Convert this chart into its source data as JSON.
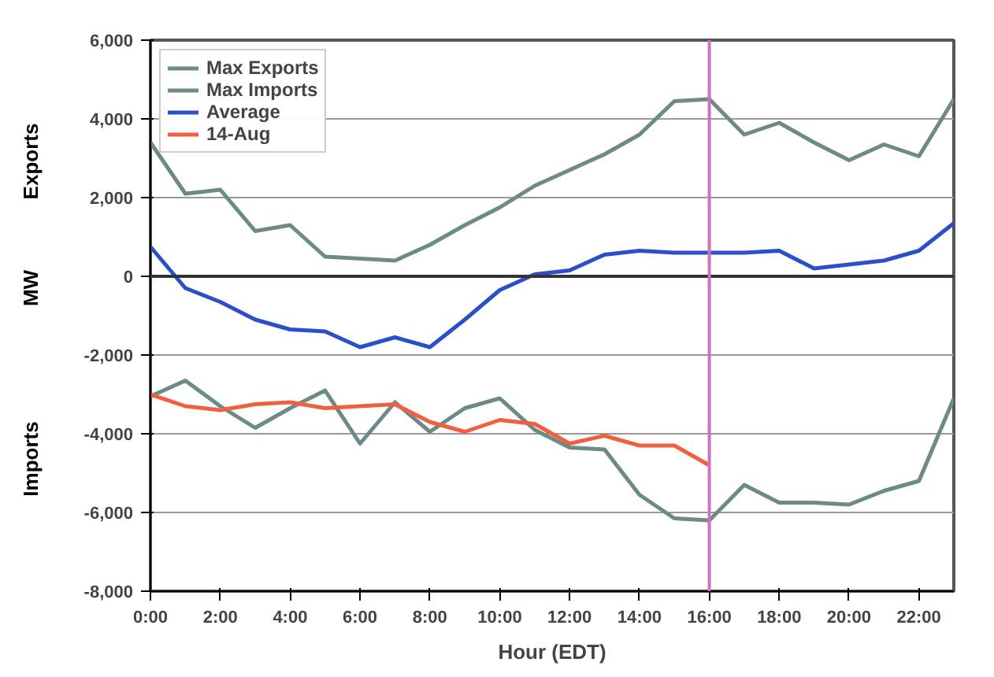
{
  "chart_data": {
    "type": "line",
    "xlabel": "Hour (EDT)",
    "ylabel": "MW",
    "annotations": [
      "Exports",
      "Imports"
    ],
    "x": [
      0,
      1,
      2,
      3,
      4,
      5,
      6,
      7,
      8,
      9,
      10,
      11,
      12,
      13,
      14,
      15,
      16,
      17,
      18,
      19,
      20,
      21,
      22,
      23
    ],
    "series": [
      {
        "name": "Max Exports",
        "color": "#6b8a88",
        "values": [
          3400,
          2100,
          2200,
          1150,
          1300,
          500,
          450,
          400,
          800,
          1300,
          1750,
          2300,
          2700,
          3100,
          3600,
          4450,
          4500,
          3600,
          3900,
          3400,
          2950,
          3350,
          3050,
          4500
        ]
      },
      {
        "name": "Max Imports",
        "color": "#6b8a88",
        "values": [
          -3050,
          -2650,
          -3300,
          -3850,
          -3350,
          -2900,
          -4250,
          -3200,
          -3950,
          -3350,
          -3100,
          -3900,
          -4350,
          -4400,
          -5550,
          -6150,
          -6200,
          -5300,
          -5750,
          -5750,
          -5800,
          -5450,
          -5200,
          -3100
        ]
      },
      {
        "name": "Average",
        "color": "#2a4fc8",
        "values": [
          750,
          -300,
          -650,
          -1100,
          -1350,
          -1400,
          -1800,
          -1550,
          -1800,
          -1100,
          -350,
          50,
          150,
          550,
          650,
          600,
          600,
          600,
          650,
          200,
          300,
          400,
          650,
          1350
        ]
      },
      {
        "name": "14-Aug",
        "color": "#f06040",
        "values": [
          -3000,
          -3300,
          -3400,
          -3250,
          -3200,
          -3350,
          -3300,
          -3250,
          -3700,
          -3950,
          -3650,
          -3750,
          -4250,
          -4050,
          -4300,
          -4300,
          -4800,
          null,
          null,
          null,
          null,
          null,
          null,
          null
        ]
      }
    ],
    "xlim": [
      0,
      23
    ],
    "xticks": [
      {
        "value": 0,
        "label": "0:00"
      },
      {
        "value": 2,
        "label": "2:00"
      },
      {
        "value": 4,
        "label": "4:00"
      },
      {
        "value": 6,
        "label": "6:00"
      },
      {
        "value": 8,
        "label": "8:00"
      },
      {
        "value": 10,
        "label": "10:00"
      },
      {
        "value": 12,
        "label": "12:00"
      },
      {
        "value": 14,
        "label": "14:00"
      },
      {
        "value": 16,
        "label": "16:00"
      },
      {
        "value": 18,
        "label": "18:00"
      },
      {
        "value": 20,
        "label": "20:00"
      },
      {
        "value": 22,
        "label": "22:00"
      }
    ],
    "ylim": [
      -8000,
      6000
    ],
    "yticks": [
      {
        "value": -8000,
        "label": "-8,000"
      },
      {
        "value": -6000,
        "label": "-6,000"
      },
      {
        "value": -4000,
        "label": "-4,000"
      },
      {
        "value": -2000,
        "label": "-2,000"
      },
      0,
      {
        "value": 2000,
        "label": "2,000"
      },
      {
        "value": 4000,
        "label": "4,000"
      },
      {
        "value": 6000,
        "label": "6,000"
      }
    ],
    "ref_lines": [
      {
        "axis": "y",
        "value": 0,
        "color": "#333333"
      },
      {
        "axis": "x",
        "value": 16,
        "color": "#d070c0"
      }
    ],
    "grid": "y",
    "legend": "top left",
    "line_style": "solid",
    "marker": "none"
  }
}
